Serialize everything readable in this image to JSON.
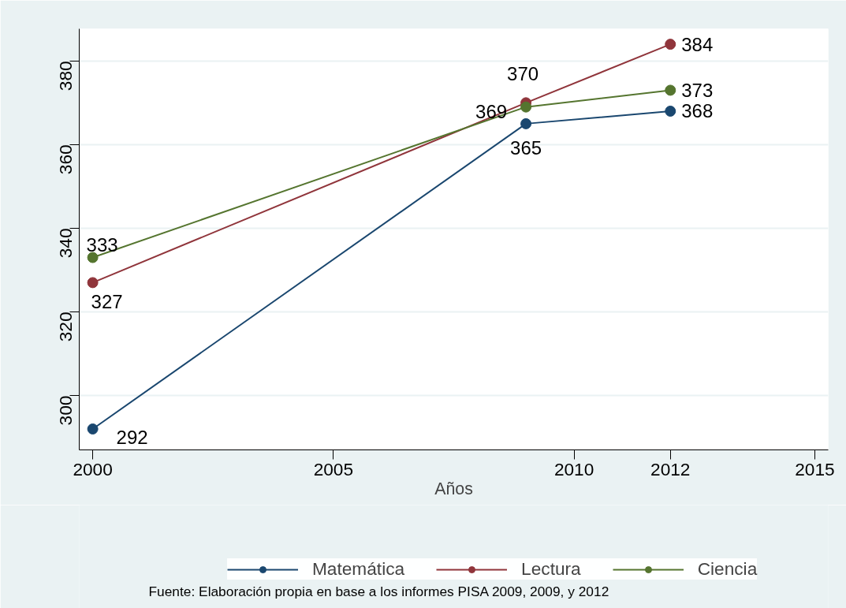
{
  "chart_data": {
    "type": "line",
    "xlabel": "Años",
    "x": [
      2000,
      2009,
      2012
    ],
    "series": [
      {
        "name": "Matemática",
        "color": "#1a476f",
        "values": [
          292,
          365,
          368
        ]
      },
      {
        "name": "Lectura",
        "color": "#90353b",
        "values": [
          327,
          370,
          384
        ]
      },
      {
        "name": "Ciencia",
        "color": "#55752f",
        "values": [
          333,
          369,
          373
        ]
      }
    ],
    "xlim": [
      1999.72,
      2015.28
    ],
    "xticks": [
      2000,
      2005,
      2010,
      2012,
      2015
    ],
    "ylim": [
      287,
      387.7
    ],
    "yticks": [
      300,
      320,
      340,
      360,
      380
    ],
    "grid": "y",
    "legend": "bottom",
    "marker": "circle",
    "line_style": "solid",
    "data_labels": true,
    "annotations": [
      "Fuente: Elaboración propia en base a los informes PISA 2009, 2009, y 2012"
    ]
  }
}
